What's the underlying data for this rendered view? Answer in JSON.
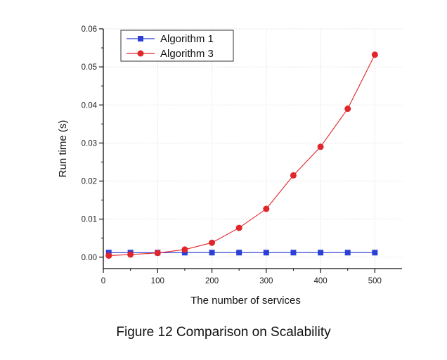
{
  "caption": "Figure 12 Comparison on Scalability",
  "chart_data": {
    "type": "line",
    "xlabel": "The number of services",
    "ylabel": "Run time (s)",
    "xlim": [
      0,
      550
    ],
    "ylim": [
      -0.003,
      0.06
    ],
    "xticks": [
      0,
      100,
      200,
      300,
      400,
      500
    ],
    "xtick_labels": [
      "0",
      "100",
      "200",
      "300",
      "400",
      "500"
    ],
    "yticks": [
      0.0,
      0.01,
      0.02,
      0.03,
      0.04,
      0.05,
      0.06
    ],
    "ytick_labels": [
      "0.00",
      "0.01",
      "0.02",
      "0.03",
      "0.04",
      "0.05",
      "0.06"
    ],
    "grid": true,
    "legend_position": "top-left",
    "series": [
      {
        "name": "Algorithm 1",
        "color": "#2b3fd6",
        "marker": "square",
        "x": [
          10,
          50,
          100,
          150,
          200,
          250,
          300,
          350,
          400,
          450,
          500
        ],
        "y": [
          0.0012,
          0.0012,
          0.0012,
          0.0012,
          0.0012,
          0.0012,
          0.0012,
          0.0012,
          0.0012,
          0.0012,
          0.0012
        ]
      },
      {
        "name": "Algorithm 3",
        "color": "#e0262b",
        "marker": "circle",
        "x": [
          10,
          50,
          100,
          150,
          200,
          250,
          300,
          350,
          400,
          450,
          500
        ],
        "y": [
          0.0004,
          0.0007,
          0.0011,
          0.002,
          0.0038,
          0.0077,
          0.0127,
          0.0215,
          0.029,
          0.039,
          0.0532
        ]
      }
    ]
  }
}
